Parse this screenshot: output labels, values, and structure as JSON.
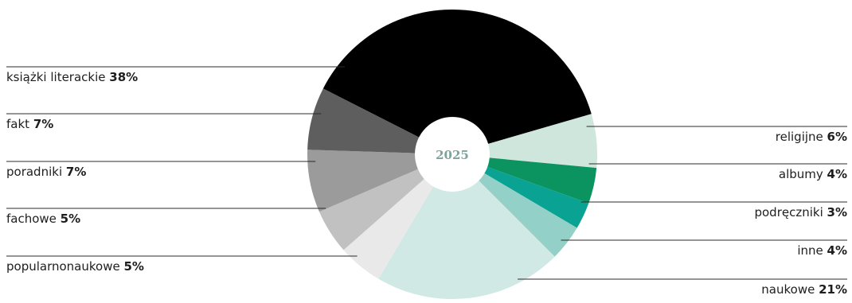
{
  "chart_data": {
    "type": "pie",
    "center_label": "2025",
    "slices": [
      {
        "label": "książki literackie",
        "value": 38,
        "value_text": "38%",
        "color": "#000000"
      },
      {
        "label": "religijne",
        "value": 6,
        "value_text": "6%",
        "color": "#cfe6dc"
      },
      {
        "label": "albumy",
        "value": 4,
        "value_text": "4%",
        "color": "#0b9460"
      },
      {
        "label": "podręczniki",
        "value": 3,
        "value_text": "3%",
        "color": "#0aa293"
      },
      {
        "label": "inne",
        "value": 4,
        "value_text": "4%",
        "color": "#93d1c8"
      },
      {
        "label": "naukowe",
        "value": 21,
        "value_text": "21%",
        "color": "#d0e9e5"
      },
      {
        "label": "popularnonaukowe",
        "value": 5,
        "value_text": "5%",
        "color": "#e9e9e9"
      },
      {
        "label": "fachowe",
        "value": 5,
        "value_text": "5%",
        "color": "#c1c1c1"
      },
      {
        "label": "poradniki",
        "value": 7,
        "value_text": "7%",
        "color": "#9b9b9b"
      },
      {
        "label": "fakt",
        "value": 7,
        "value_text": "7%",
        "color": "#5e5e5e"
      }
    ],
    "hole_color": "#ffffff",
    "center_label_color": "#7da39b",
    "line_color": "#2b2b2b"
  }
}
